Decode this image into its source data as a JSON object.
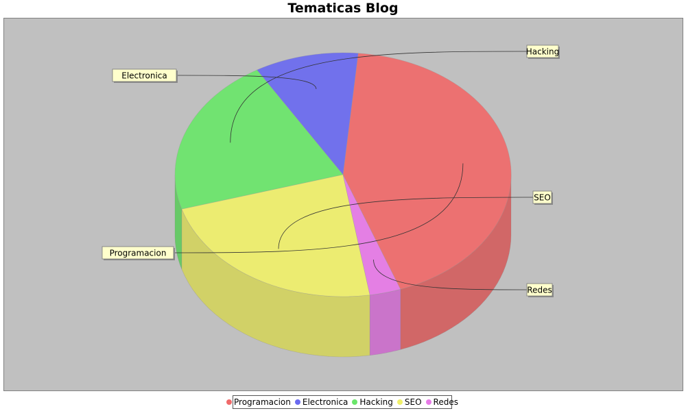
{
  "chart_data": {
    "type": "pie",
    "title": "Tematicas Blog",
    "start_angle_deg": 290,
    "slices": [
      {
        "label": "Programacion",
        "value": 43,
        "color": "#f06a6a"
      },
      {
        "label": "Electronica",
        "value": 10,
        "color": "#6a6af0"
      },
      {
        "label": "Hacking",
        "value": 21,
        "color": "#6ae66a"
      },
      {
        "label": "SEO",
        "value": 23,
        "color": "#f0f06a"
      },
      {
        "label": "Redes",
        "value": 3,
        "color": "#e77ae7"
      }
    ],
    "legend_position": "bottom",
    "plot_background": "#c0c0c0",
    "label_box_color": "#ffffcc"
  }
}
